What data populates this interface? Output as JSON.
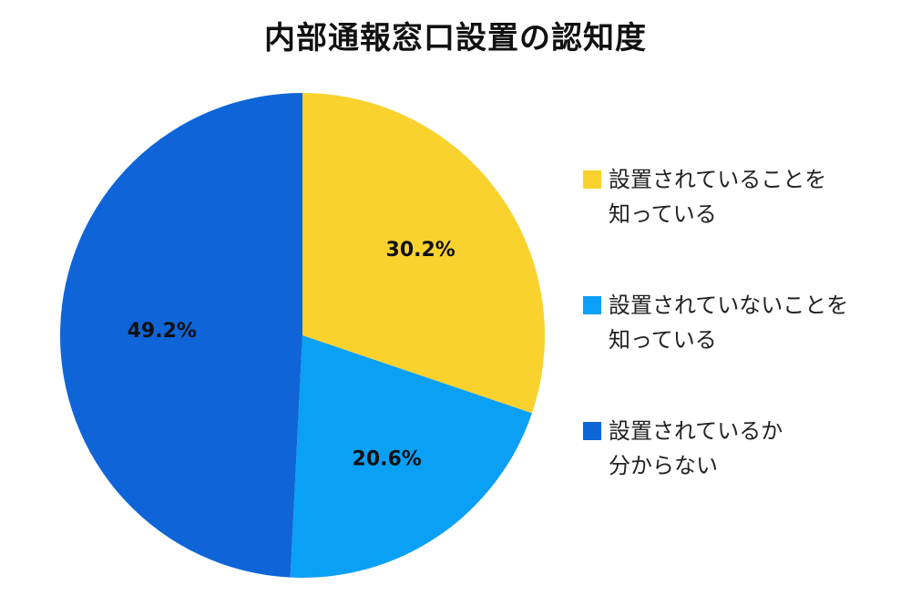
{
  "chart_data": {
    "type": "pie",
    "title": "内部通報窓口設置の認知度",
    "slices": [
      {
        "label_line1": "設置されていることを",
        "label_line2": "知っている",
        "value": 30.2,
        "display": "30.2%",
        "color": "#FAD22E"
      },
      {
        "label_line1": "設置されていないことを",
        "label_line2": "知っている",
        "value": 20.6,
        "display": "20.6%",
        "color": "#0AA0F5"
      },
      {
        "label_line1": "設置されているか",
        "label_line2": "分からない",
        "value": 49.2,
        "display": "49.2%",
        "color": "#0F65D7"
      }
    ],
    "start_angle": "12 o'clock",
    "direction": "clockwise",
    "legend_position": "right"
  }
}
